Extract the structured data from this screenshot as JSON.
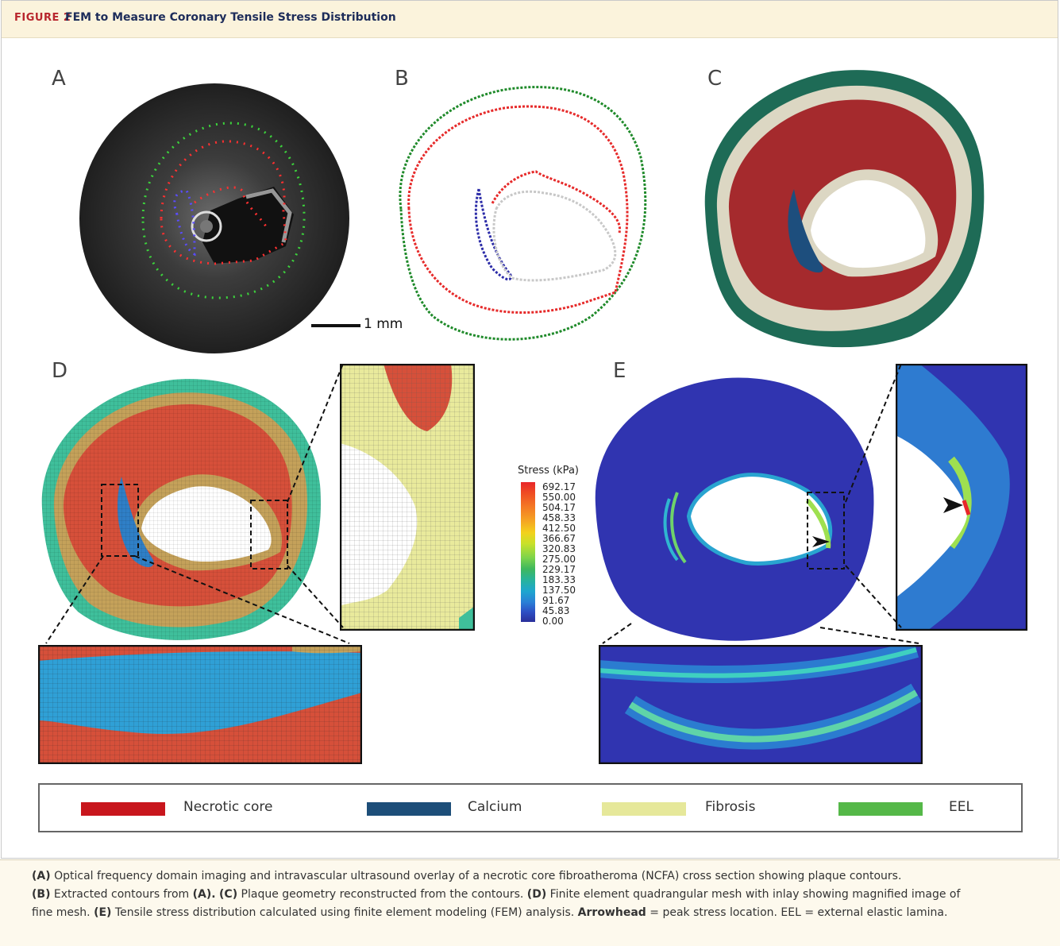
{
  "figure": {
    "label": "FIGURE 2",
    "title": "FEM to Measure Coronary Tensile Stress Distribution"
  },
  "panels": {
    "a": "A",
    "b": "B",
    "c": "C",
    "d": "D",
    "e": "E"
  },
  "scale_bar": "1 mm",
  "stress_scale": {
    "title": "Stress (kPa)",
    "ticks": [
      "692.17",
      "550.00",
      "504.17",
      "458.33",
      "412.50",
      "366.67",
      "320.83",
      "275.00",
      "229.17",
      "183.33",
      "137.50",
      "91.67",
      "45.83",
      "0.00"
    ]
  },
  "legend": [
    {
      "label": "Necrotic core",
      "color": "#c8161d"
    },
    {
      "label": "Calcium",
      "color": "#1d4e79"
    },
    {
      "label": "Fibrosis",
      "color": "#e6e89a"
    },
    {
      "label": "EEL",
      "color": "#55b848"
    }
  ],
  "caption": {
    "a_label": "(A)",
    "a_text": " Optical frequency domain imaging and intravascular ultrasound overlay of a necrotic core fibroatheroma (NCFA) cross section showing plaque contours.",
    "b_label": "(B)",
    "b_text": " Extracted contours from ",
    "b_ref": "(A).",
    "c_label": "(C)",
    "c_text": " Plaque geometry reconstructed from the contours. ",
    "d_label": "(D)",
    "d_text": " Finite element quadrangular mesh with inlay showing magnified image of",
    "d_text2": "fine mesh. ",
    "e_label": "(E)",
    "e_text": " Tensile stress distribution calculated using finite element modeling (FEM) analysis. ",
    "arrow_label": "Arrowhead",
    "arrow_text": " = peak stress location. EEL = external elastic lamina."
  }
}
